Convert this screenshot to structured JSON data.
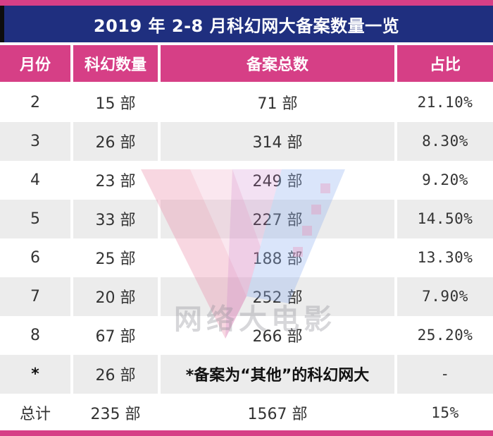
{
  "title": "2019 年 2-8 月科幻网大备案数量一览",
  "headers": [
    "月份",
    "科幻数量",
    "备案总数",
    "占比"
  ],
  "rows": [
    {
      "month": "2",
      "scifi": "15 部",
      "total": "71 部",
      "ratio": "21.10%"
    },
    {
      "month": "3",
      "scifi": "26 部",
      "total": "314 部",
      "ratio": "8.30%"
    },
    {
      "month": "4",
      "scifi": "23 部",
      "total": "249 部",
      "ratio": "9.20%"
    },
    {
      "month": "5",
      "scifi": "33 部",
      "total": "227 部",
      "ratio": "14.50%"
    },
    {
      "month": "6",
      "scifi": "25 部",
      "total": "188 部",
      "ratio": "13.30%"
    },
    {
      "month": "7",
      "scifi": "20 部",
      "total": "252 部",
      "ratio": "7.90%"
    },
    {
      "month": "8",
      "scifi": "67 部",
      "total": "266 部",
      "ratio": "25.20%"
    },
    {
      "month": "*",
      "scifi": "26 部",
      "total": "*备案为“其他”的科幻网大",
      "ratio": "-"
    },
    {
      "month": "总计",
      "scifi": "235 部",
      "total": "1567 部",
      "ratio": "15%"
    }
  ],
  "watermark": {
    "text": "网络大电影"
  },
  "colors": {
    "accent": "#d63f86",
    "title_bg": "#1f2f7f",
    "shade": "#ececec"
  }
}
